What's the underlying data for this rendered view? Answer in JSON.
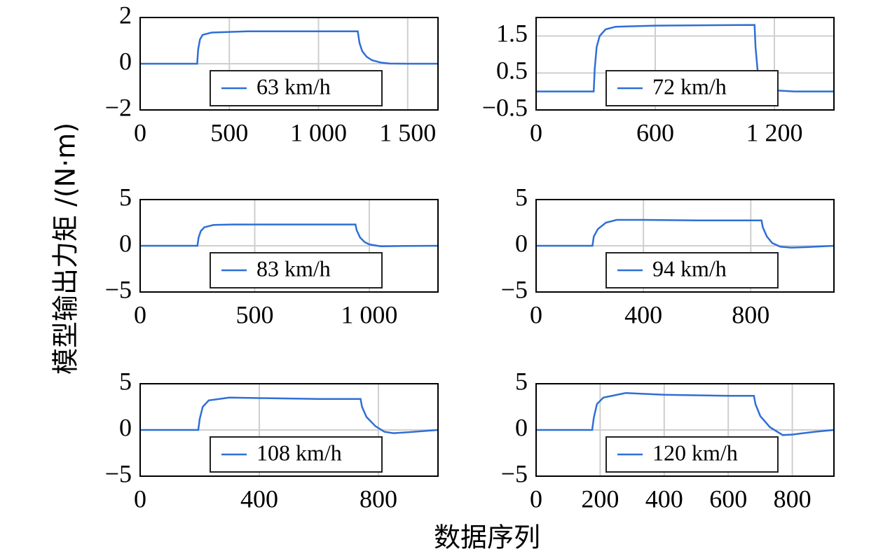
{
  "ylabel": "模型输出力矩 /(N·m)",
  "xlabel": "数据序列",
  "chart_data": [
    {
      "type": "line",
      "xlim": [
        0,
        1670
      ],
      "xticks": [
        0,
        500,
        {
          "value": 1000,
          "label": "1 000"
        },
        {
          "value": 1500,
          "label": "1 500"
        }
      ],
      "ylim": [
        -2,
        2
      ],
      "yticks": [
        {
          "value": -2,
          "label": "−2"
        },
        0,
        2
      ],
      "grid": true,
      "legend": "lower center",
      "x": [
        0,
        320,
        325,
        335,
        350,
        400,
        600,
        1000,
        1220,
        1230,
        1245,
        1270,
        1300,
        1350,
        1400,
        1500,
        1670
      ],
      "series": [
        {
          "name": "63 km/h",
          "color": "#2f6fd6",
          "values": [
            0,
            0,
            0.6,
            1.05,
            1.25,
            1.35,
            1.4,
            1.4,
            1.4,
            0.9,
            0.55,
            0.3,
            0.15,
            0.05,
            0.01,
            0,
            0
          ]
        }
      ]
    },
    {
      "type": "line",
      "xlim": [
        0,
        1500
      ],
      "xticks": [
        0,
        600,
        {
          "value": 1200,
          "label": "1 200"
        }
      ],
      "ylim": [
        -0.5,
        2
      ],
      "yticks": [
        {
          "value": -0.5,
          "label": "−0.5"
        },
        0.5,
        1.5
      ],
      "grid": true,
      "legend": "lower center",
      "x": [
        0,
        290,
        295,
        305,
        320,
        350,
        400,
        600,
        1100,
        1105,
        1115,
        1130,
        1150,
        1200,
        1300,
        1500
      ],
      "series": [
        {
          "name": "72 km/h",
          "color": "#2f6fd6",
          "values": [
            0,
            0,
            0.6,
            1.2,
            1.5,
            1.68,
            1.75,
            1.78,
            1.8,
            1.2,
            0.6,
            0.25,
            0.1,
            0.03,
            0,
            0
          ]
        }
      ]
    },
    {
      "type": "line",
      "xlim": [
        0,
        1300
      ],
      "xticks": [
        0,
        500,
        {
          "value": 1000,
          "label": "1 000"
        }
      ],
      "ylim": [
        -5,
        5
      ],
      "yticks": [
        {
          "value": -5,
          "label": "−5"
        },
        0,
        5
      ],
      "grid": true,
      "legend": "lower center",
      "x": [
        0,
        250,
        255,
        265,
        280,
        320,
        400,
        700,
        940,
        945,
        960,
        980,
        1000,
        1050,
        1150,
        1300
      ],
      "series": [
        {
          "name": "83 km/h",
          "color": "#2f6fd6",
          "values": [
            0,
            0,
            0.9,
            1.6,
            2.0,
            2.25,
            2.3,
            2.3,
            2.3,
            1.7,
            0.9,
            0.4,
            0.15,
            -0.05,
            -0.02,
            0
          ]
        }
      ]
    },
    {
      "type": "line",
      "xlim": [
        0,
        1110
      ],
      "xticks": [
        0,
        400,
        800
      ],
      "ylim": [
        -5,
        5
      ],
      "yticks": [
        {
          "value": -5,
          "label": "−5"
        },
        0,
        5
      ],
      "grid": true,
      "legend": "lower center",
      "x": [
        0,
        210,
        215,
        230,
        260,
        300,
        400,
        600,
        840,
        845,
        860,
        880,
        910,
        950,
        1000,
        1110
      ],
      "series": [
        {
          "name": "94 km/h",
          "color": "#2f6fd6",
          "values": [
            0,
            0,
            1.0,
            1.8,
            2.5,
            2.8,
            2.8,
            2.75,
            2.75,
            2.0,
            1.0,
            0.3,
            -0.1,
            -0.2,
            -0.15,
            0
          ]
        }
      ]
    },
    {
      "type": "line",
      "xlim": [
        0,
        1000
      ],
      "xticks": [
        0,
        400,
        800
      ],
      "ylim": [
        -5,
        5
      ],
      "yticks": [
        {
          "value": -5,
          "label": "−5"
        },
        0,
        5
      ],
      "grid": true,
      "legend": "lower center",
      "x": [
        0,
        195,
        200,
        210,
        230,
        300,
        400,
        600,
        740,
        745,
        760,
        790,
        820,
        850,
        900,
        1000
      ],
      "series": [
        {
          "name": "108 km/h",
          "color": "#2f6fd6",
          "values": [
            0,
            0,
            1.2,
            2.5,
            3.2,
            3.5,
            3.45,
            3.35,
            3.35,
            2.5,
            1.4,
            0.4,
            -0.2,
            -0.35,
            -0.25,
            0
          ]
        }
      ]
    },
    {
      "type": "line",
      "xlim": [
        0,
        930
      ],
      "xticks": [
        0,
        200,
        400,
        600,
        800
      ],
      "ylim": [
        -5,
        5
      ],
      "yticks": [
        {
          "value": -5,
          "label": "−5"
        },
        0,
        5
      ],
      "grid": true,
      "legend": "lower center",
      "x": [
        0,
        175,
        180,
        190,
        210,
        280,
        400,
        600,
        680,
        685,
        700,
        730,
        770,
        800,
        870,
        930
      ],
      "series": [
        {
          "name": "120 km/h",
          "color": "#2f6fd6",
          "values": [
            0,
            0,
            1.3,
            2.8,
            3.5,
            4.0,
            3.8,
            3.7,
            3.7,
            2.8,
            1.5,
            0.3,
            -0.55,
            -0.5,
            -0.2,
            0
          ]
        }
      ]
    }
  ]
}
